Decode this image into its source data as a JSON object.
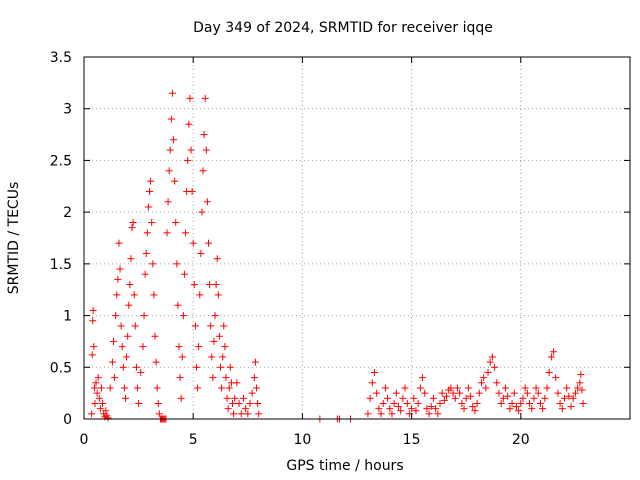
{
  "chart_data": {
    "type": "scatter",
    "title": "Day 349 of 2024, SRMTID for receiver iqqe",
    "xlabel": "GPS time / hours",
    "ylabel": "SRMTID / TECUs",
    "xlim": [
      0,
      25
    ],
    "ylim": [
      0,
      3.5
    ],
    "x_ticks": [
      0,
      5,
      10,
      15,
      20
    ],
    "x_tick_labels": [
      "0",
      "5",
      "10",
      "15",
      "20"
    ],
    "y_ticks": [
      0,
      0.5,
      1,
      1.5,
      2,
      2.5,
      3,
      3.5
    ],
    "y_tick_labels": [
      "0",
      "0.5",
      "1",
      "1.5",
      "2",
      "2.5",
      "3",
      "3.5"
    ],
    "grid": true,
    "marker": "plus",
    "series": [
      {
        "name": "SRMTID",
        "color": "#ff0000",
        "points": [
          [
            0.35,
            0.05
          ],
          [
            0.38,
            0.62
          ],
          [
            0.4,
            0.95
          ],
          [
            0.42,
            1.05
          ],
          [
            0.45,
            0.7
          ],
          [
            0.48,
            0.3
          ],
          [
            0.5,
            0.15
          ],
          [
            0.55,
            0.35
          ],
          [
            0.6,
            0.25
          ],
          [
            0.65,
            0.4
          ],
          [
            0.7,
            0.2
          ],
          [
            0.75,
            0.1
          ],
          [
            0.8,
            0.3
          ],
          [
            0.85,
            0.15
          ],
          [
            0.9,
            0.05
          ],
          [
            0.95,
            0.02
          ],
          [
            1.0,
            0.08
          ],
          [
            1.05,
            0.03
          ],
          [
            1.1,
            0.01
          ],
          [
            1.2,
            0.3
          ],
          [
            1.3,
            0.55
          ],
          [
            1.35,
            0.75
          ],
          [
            1.4,
            0.4
          ],
          [
            1.45,
            1.0
          ],
          [
            1.5,
            1.2
          ],
          [
            1.55,
            1.35
          ],
          [
            1.6,
            1.7
          ],
          [
            1.65,
            1.45
          ],
          [
            1.7,
            0.9
          ],
          [
            1.75,
            0.7
          ],
          [
            1.8,
            0.5
          ],
          [
            1.85,
            0.3
          ],
          [
            1.9,
            0.2
          ],
          [
            1.95,
            0.6
          ],
          [
            2.0,
            0.8
          ],
          [
            2.05,
            1.1
          ],
          [
            2.1,
            1.3
          ],
          [
            2.15,
            1.55
          ],
          [
            2.2,
            1.85
          ],
          [
            2.25,
            1.9
          ],
          [
            2.3,
            1.2
          ],
          [
            2.35,
            0.9
          ],
          [
            2.4,
            0.5
          ],
          [
            2.45,
            0.3
          ],
          [
            2.5,
            0.15
          ],
          [
            2.6,
            0.45
          ],
          [
            2.7,
            0.7
          ],
          [
            2.75,
            1.0
          ],
          [
            2.8,
            1.4
          ],
          [
            2.85,
            1.6
          ],
          [
            2.9,
            1.8
          ],
          [
            2.95,
            2.05
          ],
          [
            3.0,
            2.2
          ],
          [
            3.05,
            2.3
          ],
          [
            3.1,
            1.9
          ],
          [
            3.15,
            1.5
          ],
          [
            3.2,
            1.2
          ],
          [
            3.25,
            0.8
          ],
          [
            3.3,
            0.55
          ],
          [
            3.35,
            0.3
          ],
          [
            3.4,
            0.15
          ],
          [
            3.45,
            0.05
          ],
          [
            3.5,
            0.0
          ],
          [
            3.55,
            0.0
          ],
          [
            3.6,
            0.0
          ],
          [
            3.65,
            0.0
          ],
          [
            3.7,
            0.0
          ],
          [
            3.75,
            0.0
          ],
          [
            3.8,
            1.8
          ],
          [
            3.85,
            2.1
          ],
          [
            3.9,
            2.4
          ],
          [
            3.95,
            2.6
          ],
          [
            4.0,
            2.9
          ],
          [
            4.05,
            3.15
          ],
          [
            4.1,
            2.7
          ],
          [
            4.15,
            2.3
          ],
          [
            4.2,
            1.9
          ],
          [
            4.25,
            1.5
          ],
          [
            4.3,
            1.1
          ],
          [
            4.35,
            0.7
          ],
          [
            4.4,
            0.4
          ],
          [
            4.45,
            0.2
          ],
          [
            4.5,
            0.6
          ],
          [
            4.55,
            1.0
          ],
          [
            4.6,
            1.4
          ],
          [
            4.65,
            1.8
          ],
          [
            4.7,
            2.2
          ],
          [
            4.75,
            2.5
          ],
          [
            4.8,
            2.85
          ],
          [
            4.85,
            3.1
          ],
          [
            4.9,
            2.6
          ],
          [
            4.95,
            2.2
          ],
          [
            5.0,
            1.7
          ],
          [
            5.05,
            1.3
          ],
          [
            5.1,
            0.9
          ],
          [
            5.15,
            0.5
          ],
          [
            5.2,
            0.3
          ],
          [
            5.25,
            0.7
          ],
          [
            5.3,
            1.2
          ],
          [
            5.35,
            1.6
          ],
          [
            5.4,
            2.0
          ],
          [
            5.45,
            2.4
          ],
          [
            5.5,
            2.75
          ],
          [
            5.55,
            3.1
          ],
          [
            5.6,
            2.6
          ],
          [
            5.65,
            2.1
          ],
          [
            5.7,
            1.7
          ],
          [
            5.75,
            1.3
          ],
          [
            5.8,
            0.9
          ],
          [
            5.85,
            0.6
          ],
          [
            5.9,
            0.4
          ],
          [
            5.95,
            0.75
          ],
          [
            6.0,
            1.0
          ],
          [
            6.05,
            1.3
          ],
          [
            6.1,
            1.55
          ],
          [
            6.15,
            1.2
          ],
          [
            6.2,
            0.8
          ],
          [
            6.25,
            0.5
          ],
          [
            6.3,
            0.3
          ],
          [
            6.35,
            0.6
          ],
          [
            6.4,
            0.9
          ],
          [
            6.45,
            0.7
          ],
          [
            6.5,
            0.4
          ],
          [
            6.55,
            0.2
          ],
          [
            6.6,
            0.1
          ],
          [
            6.65,
            0.3
          ],
          [
            6.7,
            0.5
          ],
          [
            6.75,
            0.35
          ],
          [
            6.8,
            0.15
          ],
          [
            6.85,
            0.05
          ],
          [
            6.9,
            0.2
          ],
          [
            7.0,
            0.35
          ],
          [
            7.1,
            0.15
          ],
          [
            7.2,
            0.05
          ],
          [
            7.3,
            0.2
          ],
          [
            7.4,
            0.1
          ],
          [
            7.5,
            0.05
          ],
          [
            7.6,
            0.15
          ],
          [
            7.7,
            0.25
          ],
          [
            7.8,
            0.4
          ],
          [
            7.85,
            0.55
          ],
          [
            7.9,
            0.3
          ],
          [
            7.95,
            0.15
          ],
          [
            8.0,
            0.05
          ],
          [
            10.8,
            0.0
          ],
          [
            11.6,
            0.0
          ],
          [
            11.7,
            0.0
          ],
          [
            12.2,
            0.0
          ],
          [
            13.0,
            0.05
          ],
          [
            13.1,
            0.2
          ],
          [
            13.2,
            0.35
          ],
          [
            13.3,
            0.45
          ],
          [
            13.4,
            0.25
          ],
          [
            13.5,
            0.1
          ],
          [
            13.6,
            0.05
          ],
          [
            13.7,
            0.15
          ],
          [
            13.8,
            0.3
          ],
          [
            13.9,
            0.2
          ],
          [
            14.0,
            0.1
          ],
          [
            14.1,
            0.05
          ],
          [
            14.2,
            0.15
          ],
          [
            14.3,
            0.25
          ],
          [
            14.4,
            0.12
          ],
          [
            14.5,
            0.08
          ],
          [
            14.6,
            0.2
          ],
          [
            14.7,
            0.3
          ],
          [
            14.8,
            0.15
          ],
          [
            14.9,
            0.05
          ],
          [
            15.0,
            0.1
          ],
          [
            15.1,
            0.2
          ],
          [
            15.2,
            0.08
          ],
          [
            15.3,
            0.15
          ],
          [
            15.4,
            0.3
          ],
          [
            15.5,
            0.4
          ],
          [
            15.6,
            0.25
          ],
          [
            15.7,
            0.1
          ],
          [
            15.8,
            0.05
          ],
          [
            15.9,
            0.12
          ],
          [
            16.0,
            0.2
          ],
          [
            16.1,
            0.1
          ],
          [
            16.2,
            0.05
          ],
          [
            16.3,
            0.15
          ],
          [
            16.4,
            0.25
          ],
          [
            16.5,
            0.18
          ],
          [
            16.6,
            0.22
          ],
          [
            16.7,
            0.28
          ],
          [
            16.8,
            0.3
          ],
          [
            16.9,
            0.25
          ],
          [
            17.0,
            0.2
          ],
          [
            17.1,
            0.3
          ],
          [
            17.2,
            0.25
          ],
          [
            17.3,
            0.15
          ],
          [
            17.4,
            0.1
          ],
          [
            17.5,
            0.2
          ],
          [
            17.6,
            0.3
          ],
          [
            17.7,
            0.22
          ],
          [
            17.8,
            0.12
          ],
          [
            17.9,
            0.08
          ],
          [
            18.0,
            0.15
          ],
          [
            18.1,
            0.25
          ],
          [
            18.2,
            0.35
          ],
          [
            18.3,
            0.4
          ],
          [
            18.4,
            0.3
          ],
          [
            18.5,
            0.45
          ],
          [
            18.6,
            0.55
          ],
          [
            18.7,
            0.6
          ],
          [
            18.8,
            0.5
          ],
          [
            18.9,
            0.35
          ],
          [
            19.0,
            0.25
          ],
          [
            19.1,
            0.15
          ],
          [
            19.2,
            0.2
          ],
          [
            19.3,
            0.3
          ],
          [
            19.4,
            0.22
          ],
          [
            19.5,
            0.1
          ],
          [
            19.6,
            0.15
          ],
          [
            19.7,
            0.25
          ],
          [
            19.8,
            0.12
          ],
          [
            19.9,
            0.08
          ],
          [
            20.0,
            0.15
          ],
          [
            20.1,
            0.2
          ],
          [
            20.2,
            0.3
          ],
          [
            20.3,
            0.25
          ],
          [
            20.4,
            0.15
          ],
          [
            20.5,
            0.1
          ],
          [
            20.6,
            0.2
          ],
          [
            20.7,
            0.3
          ],
          [
            20.8,
            0.25
          ],
          [
            20.9,
            0.15
          ],
          [
            21.0,
            0.1
          ],
          [
            21.1,
            0.2
          ],
          [
            21.2,
            0.3
          ],
          [
            21.3,
            0.45
          ],
          [
            21.4,
            0.6
          ],
          [
            21.5,
            0.65
          ],
          [
            21.6,
            0.4
          ],
          [
            21.7,
            0.25
          ],
          [
            21.8,
            0.15
          ],
          [
            21.9,
            0.1
          ],
          [
            22.0,
            0.2
          ],
          [
            22.1,
            0.3
          ],
          [
            22.2,
            0.22
          ],
          [
            22.3,
            0.12
          ],
          [
            22.4,
            0.2
          ],
          [
            22.5,
            0.25
          ],
          [
            22.6,
            0.3
          ],
          [
            22.7,
            0.35
          ],
          [
            22.75,
            0.43
          ],
          [
            22.8,
            0.28
          ],
          [
            22.85,
            0.15
          ]
        ]
      }
    ]
  }
}
